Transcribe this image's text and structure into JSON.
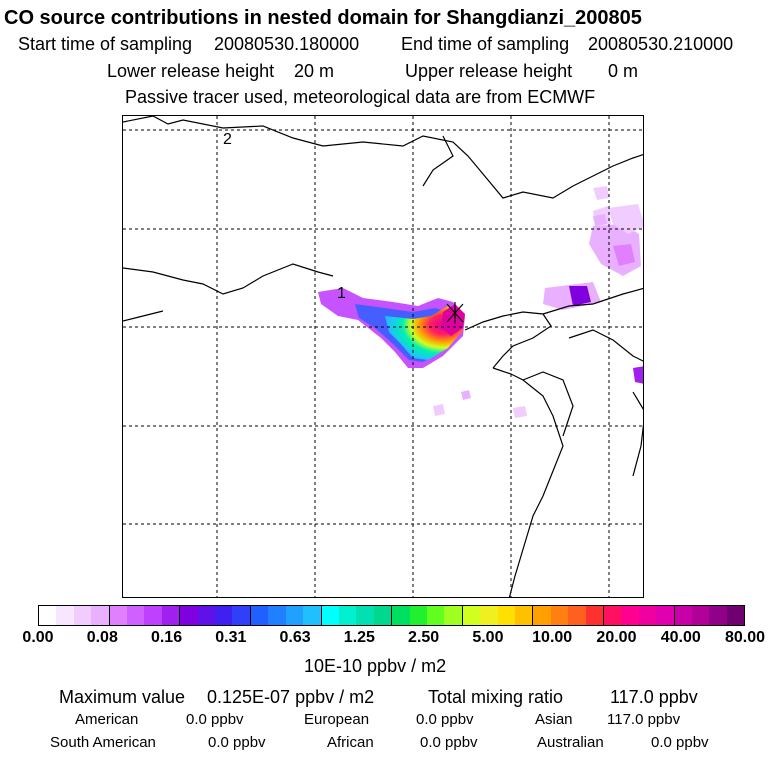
{
  "header": {
    "title": "CO  source contributions in nested domain for Shangdianzi_200805",
    "start_label": "Start time of sampling",
    "start_value": "20080530.180000",
    "end_label": "End time of sampling",
    "end_value": "20080530.210000",
    "lower_label": "Lower release height",
    "lower_value": "20 m",
    "upper_label": "Upper release height",
    "upper_value": "0 m",
    "tracer_note": "Passive tracer used, meteorological data are from ECMWF"
  },
  "map": {
    "grid_labels": [
      "2",
      "1"
    ]
  },
  "colorbar": {
    "tick_labels": [
      "0.00",
      "0.08",
      "0.16",
      "0.31",
      "0.63",
      "1.25",
      "2.50",
      "5.00",
      "10.00",
      "20.00",
      "40.00",
      "80.00"
    ],
    "unit_label": "10E-10 ppbv / m2",
    "colors": [
      "#ffffff",
      "#f8e6ff",
      "#f0ccff",
      "#e8b0ff",
      "#e080ff",
      "#d060ff",
      "#c040ff",
      "#a020f0",
      "#8000e0",
      "#6010e8",
      "#4020f0",
      "#3040f8",
      "#2060ff",
      "#2080ff",
      "#20a0ff",
      "#20c0ff",
      "#00ffff",
      "#00f0d0",
      "#00e0b0",
      "#00d890",
      "#00e060",
      "#20f030",
      "#60ff20",
      "#a0ff20",
      "#d0ff20",
      "#f0f020",
      "#ffe000",
      "#ffc000",
      "#ffa000",
      "#ff8010",
      "#ff6020",
      "#ff3030",
      "#ff1060",
      "#ff0090",
      "#f000a0",
      "#e000b0",
      "#c800a8",
      "#b00098",
      "#900088",
      "#700070"
    ]
  },
  "summary": {
    "max_label": "Maximum value",
    "max_value": "0.125E-07 ppbv / m2",
    "total_label": "Total mixing ratio",
    "total_value": "117.0 ppbv",
    "regions": [
      {
        "name": "American",
        "value": "0.0 ppbv"
      },
      {
        "name": "European",
        "value": "0.0 ppbv"
      },
      {
        "name": "Asian",
        "value": "117.0 ppbv"
      },
      {
        "name": "South American",
        "value": "0.0 ppbv"
      },
      {
        "name": "African",
        "value": "0.0 ppbv"
      },
      {
        "name": "Australian",
        "value": "0.0 ppbv"
      }
    ]
  }
}
